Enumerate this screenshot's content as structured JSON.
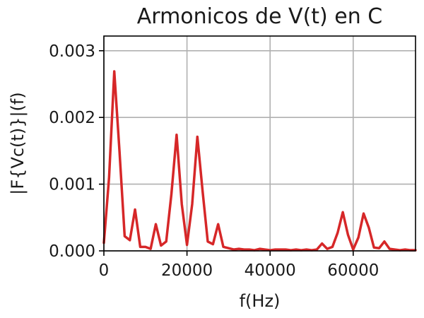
{
  "chart_data": {
    "type": "line",
    "title": "Armonicos de V(t) en C",
    "xlabel": "f(Hz)",
    "ylabel": "|F{Vc(t)}|(f)",
    "xlim": [
      0,
      75000
    ],
    "ylim": [
      0,
      0.00322
    ],
    "xticks": [
      0,
      20000,
      40000,
      60000
    ],
    "xtick_labels": [
      "0",
      "20000",
      "40000",
      "60000"
    ],
    "yticks": [
      0,
      0.001,
      0.002,
      0.003
    ],
    "ytick_labels": [
      "0.000",
      "0.001",
      "0.002",
      "0.003"
    ],
    "grid": true,
    "line_color": "#d62728",
    "series": [
      {
        "x": [
          0,
          1250,
          2500,
          3750,
          5000,
          6250,
          7500,
          8750,
          10000,
          11250,
          12500,
          13750,
          15000,
          16250,
          17500,
          18750,
          20000,
          21250,
          22500,
          23750,
          25000,
          26250,
          27500,
          28750,
          30000,
          31250,
          32500,
          33750,
          35000,
          36250,
          37500,
          38750,
          40000,
          41250,
          42500,
          43750,
          45000,
          46250,
          47500,
          48750,
          50000,
          51250,
          52500,
          53750,
          55000,
          56250,
          57500,
          58750,
          60000,
          61250,
          62500,
          63750,
          65000,
          66250,
          67500,
          68750,
          70000,
          71250,
          72500,
          73750,
          75000
        ],
        "values": [
          0.00012,
          0.0011,
          0.00269,
          0.0015,
          0.00022,
          0.00016,
          0.00062,
          6e-05,
          6e-05,
          3e-05,
          0.0004,
          8e-05,
          0.00014,
          0.00085,
          0.00174,
          0.0007,
          9e-05,
          0.0007,
          0.00171,
          0.0009,
          0.00014,
          0.0001,
          0.0004,
          6e-05,
          4e-05,
          2e-05,
          3e-05,
          2e-05,
          2e-05,
          1e-05,
          3e-05,
          2e-05,
          1e-05,
          2e-05,
          2e-05,
          2e-05,
          1e-05,
          2e-05,
          1e-05,
          2e-05,
          1e-05,
          2e-05,
          0.00011,
          3e-05,
          6e-05,
          0.00027,
          0.00058,
          0.00024,
          2e-05,
          0.0002,
          0.00056,
          0.00035,
          5e-05,
          4e-05,
          0.00014,
          3e-05,
          2e-05,
          1e-05,
          2e-05,
          1e-05,
          1e-05
        ]
      }
    ]
  }
}
